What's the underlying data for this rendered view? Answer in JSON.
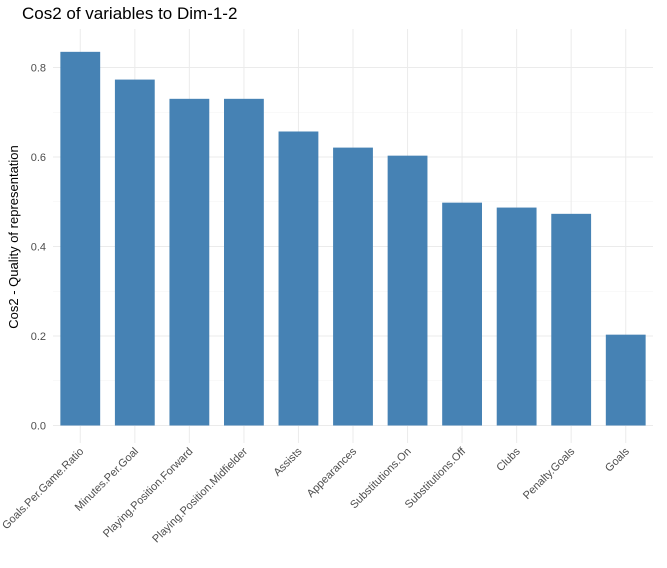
{
  "chart_data": {
    "type": "bar",
    "title": "Cos2 of variables to Dim-1-2",
    "xlabel": "",
    "ylabel": "Cos2 - Quality of representation",
    "categories": [
      "Goals.Per.Game.Ratio",
      "Minutes.Per.Goal",
      "Playing.Position.Forward",
      "Playing.Position.Midfielder",
      "Assists",
      "Appearances",
      "Substitutions.On",
      "Substitutions.Off",
      "Clubs",
      "Penalty.Goals",
      "Goals"
    ],
    "values": [
      0.835,
      0.773,
      0.73,
      0.73,
      0.657,
      0.621,
      0.603,
      0.498,
      0.487,
      0.473,
      0.203
    ],
    "ylim": [
      0,
      0.88
    ],
    "yticks": [
      0.0,
      0.2,
      0.4,
      0.6,
      0.8
    ],
    "ytick_labels": [
      "0.0",
      "0.2",
      "0.4",
      "0.6",
      "0.8"
    ],
    "grid": true,
    "bar_color": "#4682b4"
  }
}
